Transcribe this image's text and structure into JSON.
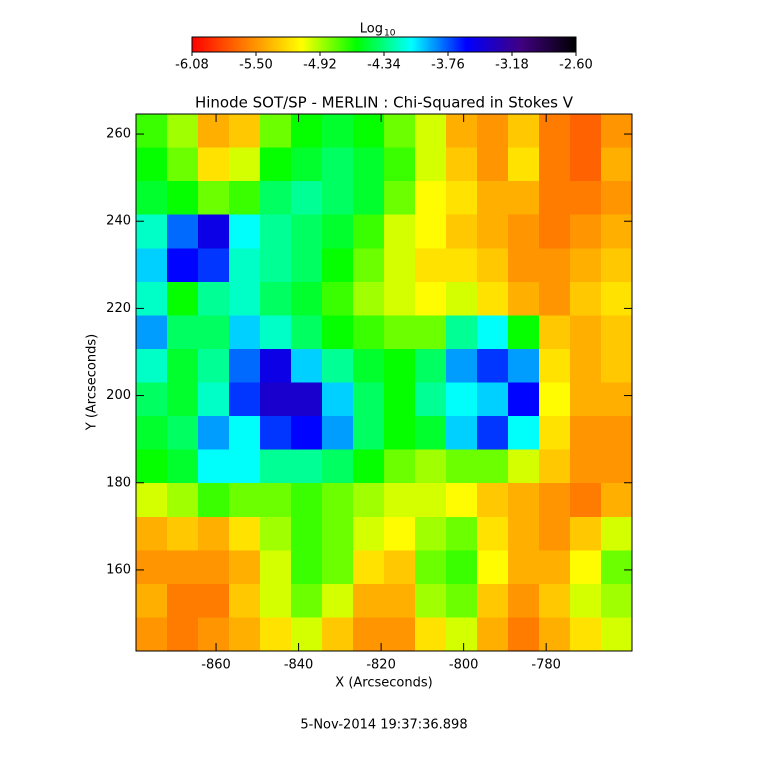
{
  "chart_data": {
    "type": "heatmap",
    "title": "Hinode SOT/SP - MERLIN : Chi-Squared in Stokes V",
    "xlabel": "X (Arcseconds)",
    "ylabel": "Y (Arcseconds)",
    "footer": "5-Nov-2014 19:37:36.898",
    "xlim": [
      -879.4,
      -759.2
    ],
    "ylim": [
      141.4,
      264.6
    ],
    "xticks": [
      -860,
      -840,
      -820,
      -800,
      -780
    ],
    "yticks": [
      160,
      180,
      200,
      220,
      240,
      260
    ],
    "colorbar": {
      "label": "Log",
      "label_sub": "10",
      "lim": [
        -6.08,
        -2.6
      ],
      "ticks": [
        -6.08,
        {
          "value": -5.5,
          "label": "-5.50"
        },
        -4.92,
        -4.34,
        -3.76,
        -3.18,
        {
          "value": -2.6,
          "label": "-2.60"
        }
      ],
      "colors": [
        "#ff0000",
        "#ff8000",
        "#ffff00",
        "#00ff00",
        "#00ffff",
        "#0000ff",
        "#400080",
        "#000000"
      ]
    },
    "z": [
      [
        -4.7,
        -4.9,
        -5.4,
        -5.3,
        -4.8,
        -4.6,
        -4.5,
        -4.6,
        -4.8,
        -5.0,
        -5.4,
        -5.5,
        -5.3,
        -5.6,
        -5.7,
        -5.5
      ],
      [
        -4.6,
        -4.8,
        -5.2,
        -5.0,
        -4.6,
        -4.5,
        -4.4,
        -4.5,
        -4.7,
        -5.0,
        -5.3,
        -5.5,
        -5.2,
        -5.6,
        -5.7,
        -5.4
      ],
      [
        -4.5,
        -4.6,
        -4.8,
        -4.7,
        -4.4,
        -4.3,
        -4.4,
        -4.5,
        -4.8,
        -5.1,
        -5.2,
        -5.4,
        -5.4,
        -5.6,
        -5.6,
        -5.5
      ],
      [
        -4.2,
        -3.8,
        -3.5,
        -4.1,
        -4.3,
        -4.4,
        -4.5,
        -4.7,
        -5.0,
        -5.1,
        -5.3,
        -5.4,
        -5.5,
        -5.6,
        -5.5,
        -5.4
      ],
      [
        -4.0,
        -3.6,
        -3.7,
        -4.2,
        -4.3,
        -4.4,
        -4.6,
        -4.8,
        -5.0,
        -5.2,
        -5.2,
        -5.3,
        -5.5,
        -5.5,
        -5.4,
        -5.3
      ],
      [
        -4.2,
        -4.6,
        -4.3,
        -4.2,
        -4.4,
        -4.5,
        -4.7,
        -4.9,
        -5.0,
        -5.1,
        -5.0,
        -5.2,
        -5.4,
        -5.5,
        -5.3,
        -5.2
      ],
      [
        -3.9,
        -4.4,
        -4.4,
        -4.0,
        -4.2,
        -4.4,
        -4.6,
        -4.7,
        -4.8,
        -4.8,
        -4.3,
        -4.1,
        -4.6,
        -5.3,
        -5.4,
        -5.3
      ],
      [
        -4.2,
        -4.5,
        -4.3,
        -3.8,
        -3.5,
        -4.0,
        -4.3,
        -4.5,
        -4.6,
        -4.4,
        -3.9,
        -3.7,
        -3.9,
        -5.2,
        -5.4,
        -5.3
      ],
      [
        -4.4,
        -4.5,
        -4.2,
        -3.7,
        -3.4,
        -3.4,
        -4.0,
        -4.4,
        -4.6,
        -4.3,
        -4.1,
        -4.0,
        -3.6,
        -5.1,
        -5.4,
        -5.4
      ],
      [
        -4.5,
        -4.4,
        -3.9,
        -4.1,
        -3.7,
        -3.6,
        -3.9,
        -4.4,
        -4.6,
        -4.5,
        -4.0,
        -3.7,
        -4.1,
        -5.2,
        -5.5,
        -5.5
      ],
      [
        -4.6,
        -4.5,
        -4.1,
        -4.1,
        -4.3,
        -4.3,
        -4.4,
        -4.6,
        -4.8,
        -4.9,
        -4.8,
        -4.8,
        -5.0,
        -5.3,
        -5.5,
        -5.5
      ],
      [
        -5.0,
        -4.9,
        -4.7,
        -4.8,
        -4.8,
        -4.7,
        -4.8,
        -4.9,
        -5.0,
        -5.0,
        -5.1,
        -5.3,
        -5.4,
        -5.5,
        -5.6,
        -5.4
      ],
      [
        -5.4,
        -5.3,
        -5.4,
        -5.2,
        -4.9,
        -4.7,
        -4.8,
        -5.0,
        -5.1,
        -4.9,
        -4.8,
        -5.2,
        -5.4,
        -5.5,
        -5.3,
        -5.0
      ],
      [
        -5.5,
        -5.5,
        -5.5,
        -5.4,
        -5.0,
        -4.7,
        -4.8,
        -5.2,
        -5.3,
        -4.8,
        -4.7,
        -5.1,
        -5.4,
        -5.4,
        -5.1,
        -4.8
      ],
      [
        -5.4,
        -5.6,
        -5.6,
        -5.3,
        -5.0,
        -4.8,
        -5.0,
        -5.4,
        -5.4,
        -4.9,
        -4.8,
        -5.3,
        -5.5,
        -5.3,
        -5.0,
        -4.9
      ],
      [
        -5.5,
        -5.6,
        -5.5,
        -5.4,
        -5.2,
        -5.0,
        -5.3,
        -5.5,
        -5.5,
        -5.2,
        -5.0,
        -5.4,
        -5.6,
        -5.4,
        -5.2,
        -5.0
      ]
    ]
  }
}
